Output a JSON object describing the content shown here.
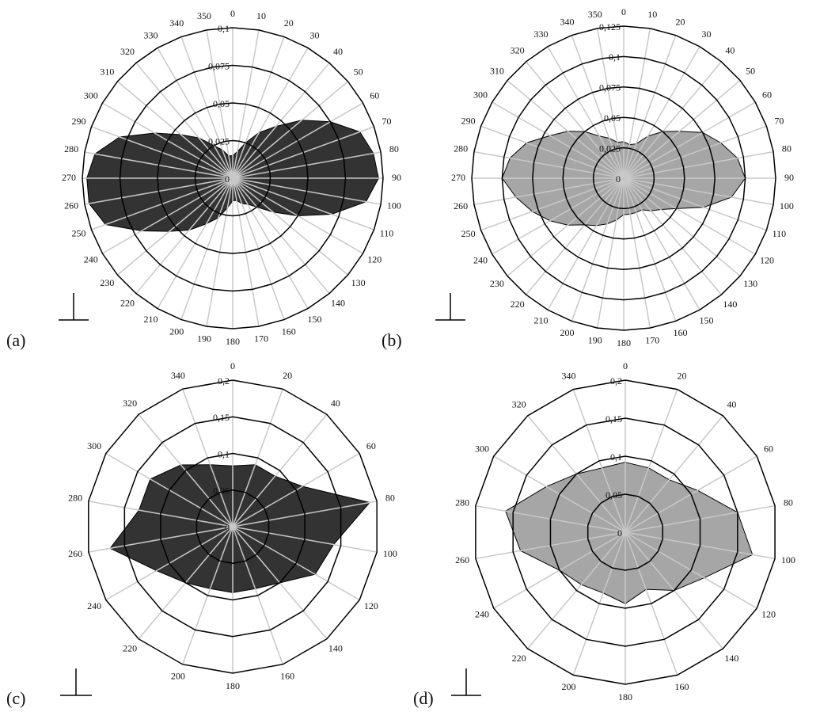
{
  "chart_data": [
    {
      "type": "radar",
      "label": "(a)",
      "color": "#333333",
      "categories": [
        "0",
        "10",
        "20",
        "30",
        "40",
        "50",
        "60",
        "70",
        "80",
        "90",
        "100",
        "110",
        "120",
        "130",
        "140",
        "150",
        "160",
        "170",
        "180",
        "190",
        "200",
        "210",
        "220",
        "230",
        "240",
        "250",
        "260",
        "270",
        "280",
        "290",
        "300",
        "310",
        "320",
        "330",
        "340",
        "350"
      ],
      "values": [
        0.015,
        0.018,
        0.025,
        0.035,
        0.045,
        0.06,
        0.075,
        0.09,
        0.095,
        0.097,
        0.09,
        0.07,
        0.05,
        0.035,
        0.025,
        0.02,
        0.018,
        0.015,
        0.015,
        0.02,
        0.028,
        0.035,
        0.045,
        0.055,
        0.07,
        0.09,
        0.097,
        0.097,
        0.093,
        0.08,
        0.06,
        0.045,
        0.035,
        0.025,
        0.02,
        0.015
      ],
      "ylim": [
        0,
        0.1
      ],
      "yticks": [
        0,
        {
          "value": 0.025,
          "label": "0,025"
        },
        {
          "value": 0.05,
          "label": "0,05"
        },
        {
          "value": 0.075,
          "label": "0,075"
        },
        {
          "value": 0.1,
          "label": "0,1"
        }
      ]
    },
    {
      "type": "radar",
      "label": "(b)",
      "color": "#a6a6a6",
      "categories": [
        "0",
        "10",
        "20",
        "30",
        "40",
        "50",
        "60",
        "70",
        "80",
        "90",
        "100",
        "110",
        "120",
        "130",
        "140",
        "150",
        "160",
        "170",
        "180",
        "190",
        "200",
        "210",
        "220",
        "230",
        "240",
        "250",
        "260",
        "270",
        "280",
        "290",
        "300",
        "310",
        "320",
        "330",
        "340",
        "350"
      ],
      "values": [
        0.03,
        0.028,
        0.03,
        0.04,
        0.05,
        0.06,
        0.075,
        0.085,
        0.095,
        0.1,
        0.09,
        0.07,
        0.05,
        0.04,
        0.035,
        0.03,
        0.03,
        0.03,
        0.03,
        0.035,
        0.04,
        0.045,
        0.05,
        0.06,
        0.07,
        0.08,
        0.09,
        0.1,
        0.095,
        0.085,
        0.07,
        0.06,
        0.05,
        0.04,
        0.035,
        0.03
      ],
      "ylim": [
        0,
        0.125
      ],
      "yticks": [
        0,
        {
          "value": 0.025,
          "label": "0,025"
        },
        {
          "value": 0.05,
          "label": "0,05"
        },
        {
          "value": 0.075,
          "label": "0,075"
        },
        {
          "value": 0.1,
          "label": "0,1"
        },
        {
          "value": 0.125,
          "label": "0,125"
        }
      ]
    },
    {
      "type": "radar",
      "label": "(c)",
      "color": "#333333",
      "categories": [
        "0",
        "20",
        "40",
        "60",
        "80",
        "100",
        "120",
        "140",
        "160",
        "180",
        "200",
        "220",
        "240",
        "260",
        "280",
        "300",
        "320",
        "340"
      ],
      "values": [
        0.083,
        0.09,
        0.09,
        0.11,
        0.19,
        0.14,
        0.13,
        0.1,
        0.09,
        0.09,
        0.09,
        0.1,
        0.12,
        0.17,
        0.13,
        0.13,
        0.11,
        0.09
      ],
      "ylim": [
        0,
        0.2
      ],
      "yticks": [
        0,
        {
          "value": 0.05,
          "label": "0,05"
        },
        {
          "value": 0.1,
          "label": "0,1"
        },
        {
          "value": 0.15,
          "label": "0,15"
        },
        {
          "value": 0.2,
          "label": "0,2"
        }
      ]
    },
    {
      "type": "radar",
      "label": "(d)",
      "color": "#a6a6a6",
      "categories": [
        "0",
        "20",
        "40",
        "60",
        "80",
        "100",
        "120",
        "140",
        "160",
        "180",
        "200",
        "220",
        "240",
        "260",
        "280",
        "300",
        "320",
        "340"
      ],
      "values": [
        0.092,
        0.09,
        0.09,
        0.11,
        0.15,
        0.17,
        0.12,
        0.1,
        0.08,
        0.094,
        0.085,
        0.09,
        0.1,
        0.14,
        0.16,
        0.12,
        0.1,
        0.09
      ],
      "ylim": [
        0,
        0.2
      ],
      "yticks": [
        0,
        {
          "value": 0.05,
          "label": "0,05"
        },
        {
          "value": 0.1,
          "label": "0,1"
        },
        {
          "value": 0.15,
          "label": "0,15"
        },
        {
          "value": 0.2,
          "label": "0,2"
        }
      ]
    }
  ]
}
